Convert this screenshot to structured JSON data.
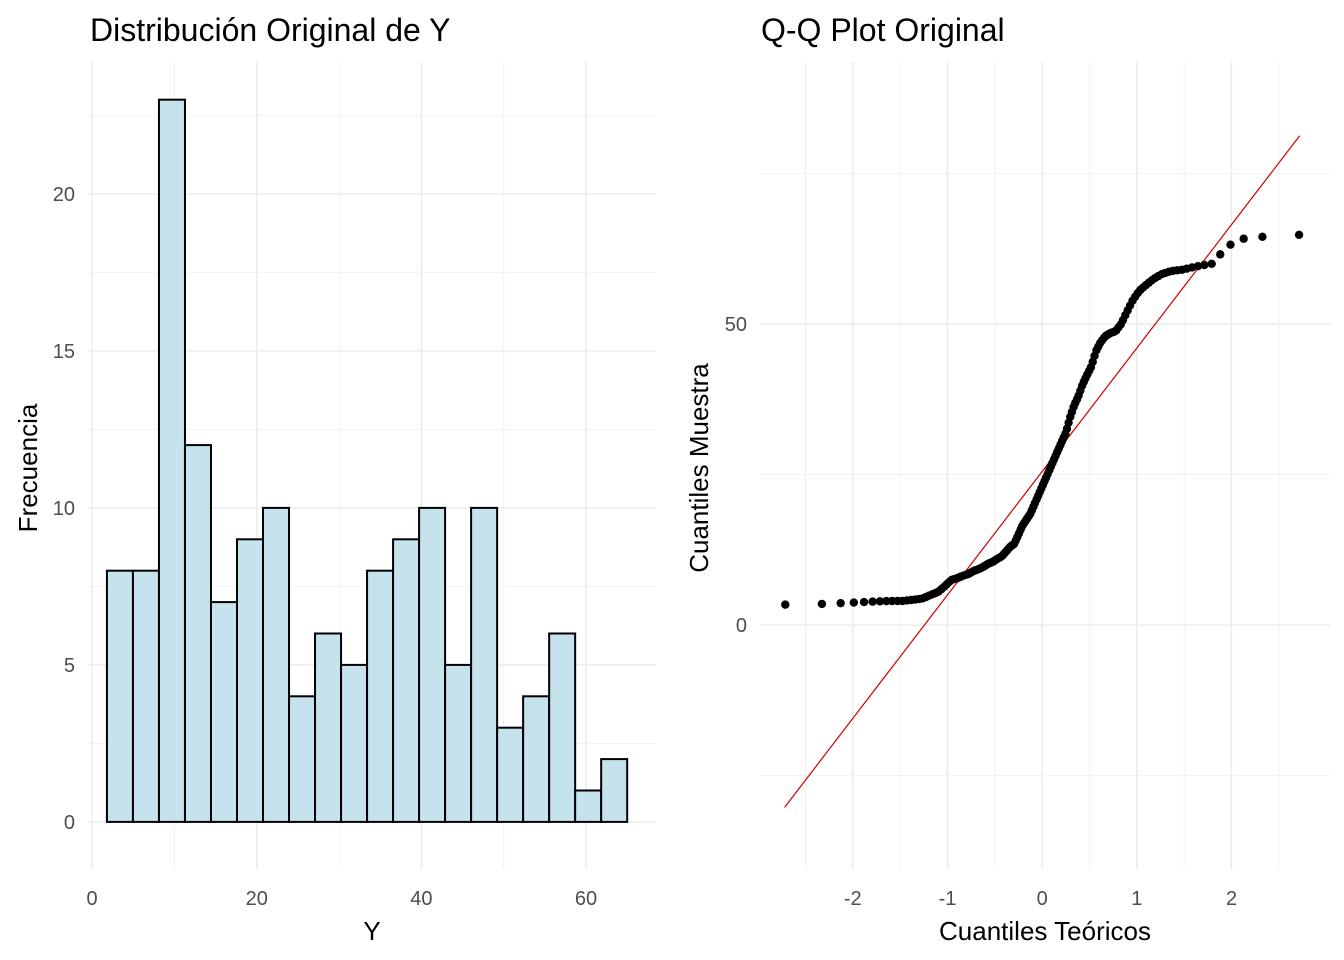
{
  "chart_data": [
    {
      "type": "bar",
      "title": "Distribución Original de Y",
      "xlabel": "Y",
      "ylabel": "Frecuencia",
      "bin_width": 3.16,
      "bin_start": 1.8,
      "counts": [
        8,
        8,
        23,
        12,
        7,
        9,
        10,
        4,
        6,
        5,
        8,
        9,
        10,
        5,
        10,
        3,
        4,
        6,
        1,
        2
      ],
      "xlim": [
        -0.5,
        68.5
      ],
      "ylim": [
        -1.5,
        24.2
      ],
      "x_ticks": [
        0,
        20,
        40,
        60
      ],
      "y_ticks": [
        0,
        5,
        10,
        15,
        20
      ],
      "fill_color": "#c6e2ed",
      "edge_color": "#000000",
      "grid": true
    },
    {
      "type": "scatter",
      "title": "Q-Q Plot Original",
      "xlabel": "Cuantiles Teóricos",
      "ylabel": "Cuantiles Muestra",
      "xlim": [
        -2.98,
        3.04
      ],
      "ylim": [
        -40.5,
        93.5
      ],
      "x_ticks": [
        -2,
        -1,
        0,
        1,
        2
      ],
      "x_tick_labels": [
        "-2",
        "-1",
        "0",
        "1",
        "2"
      ],
      "y_ticks": [
        0,
        50
      ],
      "y_tick_labels": [
        "0",
        "50"
      ],
      "n_points": 150,
      "sample_quantiles_sorted": [
        3.4,
        3.7,
        3.9,
        4.0,
        4.0,
        4.2,
        4.4,
        5.0,
        5.5,
        6.5,
        7.5,
        7.8,
        8.2,
        8.5,
        9.0,
        9.3,
        9.7,
        10.2,
        10.5,
        11.0,
        11.4,
        12.2,
        13.0,
        13.5,
        15.0,
        16.5,
        17.5,
        18.5,
        20.0,
        21.5,
        23.0,
        24.5,
        26.0,
        27.5,
        29.0,
        30.5,
        32.0,
        34.5,
        36.5,
        38.0,
        40.0,
        41.5,
        43.0,
        45.5,
        47.0,
        48.0,
        48.5,
        48.8,
        50.0,
        52.0,
        54.0,
        55.5,
        56.5,
        57.5,
        58.3,
        58.8,
        59.0,
        59.5,
        60.0,
        64.0,
        64.8
      ],
      "reference_line": {
        "intercept": 25.5,
        "slope": 20.5,
        "color": "#cc0000"
      },
      "point_color": "#000000",
      "grid": true
    }
  ]
}
